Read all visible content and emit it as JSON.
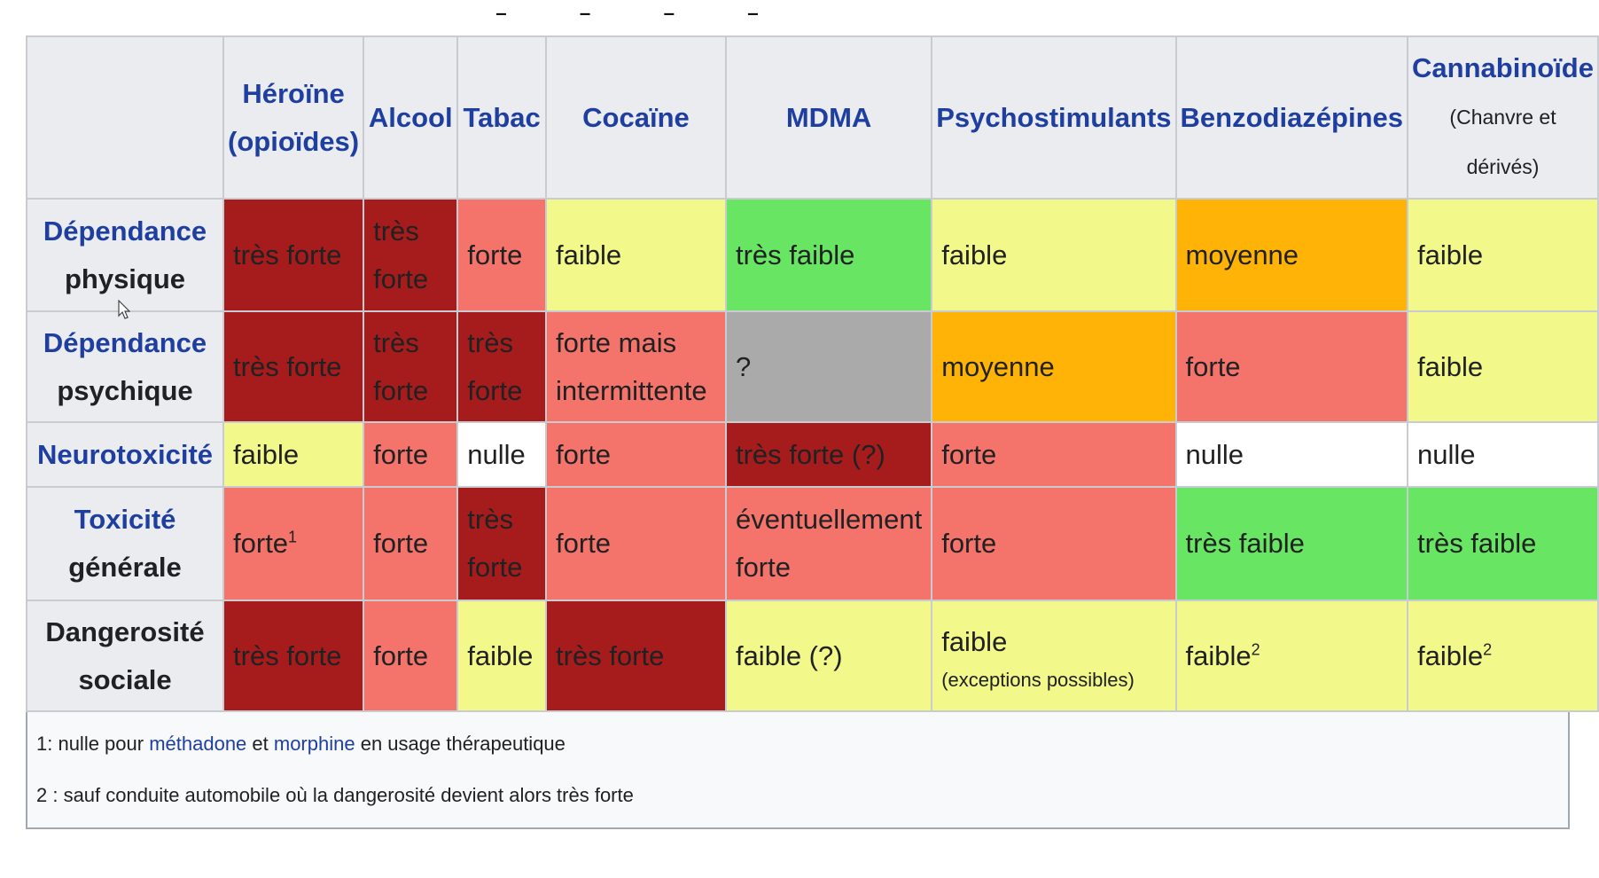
{
  "columns": [
    {
      "label": "Héroïne (opioïdes)",
      "sub": ""
    },
    {
      "label": "Alcool",
      "sub": ""
    },
    {
      "label": "Tabac",
      "sub": ""
    },
    {
      "label": "Cocaïne",
      "sub": ""
    },
    {
      "label": "MDMA",
      "sub": ""
    },
    {
      "label": "Psychostimulants",
      "sub": ""
    },
    {
      "label": "Benzodiazépines",
      "sub": ""
    },
    {
      "label": "Cannabinoïde",
      "sub": "(Chanvre et dérivés)"
    }
  ],
  "rows": [
    {
      "header_link": "Dépendance",
      "header_plain": "physique",
      "cells": [
        {
          "text": "très forte",
          "sup": "",
          "color": "dark-red"
        },
        {
          "text": "très forte",
          "sup": "",
          "color": "dark-red"
        },
        {
          "text": "forte",
          "sup": "",
          "color": "salmon"
        },
        {
          "text": "faible",
          "sup": "",
          "color": "yellow"
        },
        {
          "text": "très faible",
          "sup": "",
          "color": "green"
        },
        {
          "text": "faible",
          "sup": "",
          "color": "yellow"
        },
        {
          "text": "moyenne",
          "sup": "",
          "color": "orange"
        },
        {
          "text": "faible",
          "sup": "",
          "color": "yellow"
        }
      ]
    },
    {
      "header_link": "Dépendance",
      "header_plain": "psychique",
      "cells": [
        {
          "text": "très forte",
          "sup": "",
          "color": "dark-red"
        },
        {
          "text": "très forte",
          "sup": "",
          "color": "dark-red"
        },
        {
          "text": "très forte",
          "sup": "",
          "color": "dark-red"
        },
        {
          "text": "forte mais intermittente",
          "sup": "",
          "color": "salmon"
        },
        {
          "text": "?",
          "sup": "",
          "color": "grey"
        },
        {
          "text": "moyenne",
          "sup": "",
          "color": "orange"
        },
        {
          "text": "forte",
          "sup": "",
          "color": "salmon"
        },
        {
          "text": "faible",
          "sup": "",
          "color": "yellow"
        }
      ]
    },
    {
      "header_link": "Neurotoxicité",
      "header_plain": "",
      "cells": [
        {
          "text": "faible",
          "sup": "",
          "color": "yellow"
        },
        {
          "text": "forte",
          "sup": "",
          "color": "salmon"
        },
        {
          "text": "nulle",
          "sup": "",
          "color": "white"
        },
        {
          "text": "forte",
          "sup": "",
          "color": "salmon"
        },
        {
          "text": "très forte (?)",
          "sup": "",
          "color": "dark-red"
        },
        {
          "text": "forte",
          "sup": "",
          "color": "salmon"
        },
        {
          "text": "nulle",
          "sup": "",
          "color": "white"
        },
        {
          "text": "nulle",
          "sup": "",
          "color": "white"
        }
      ]
    },
    {
      "header_link": "Toxicité",
      "header_plain": "générale",
      "cells": [
        {
          "text": "forte",
          "sup": "1",
          "color": "salmon"
        },
        {
          "text": "forte",
          "sup": "",
          "color": "salmon"
        },
        {
          "text": "très forte",
          "sup": "",
          "color": "dark-red"
        },
        {
          "text": "forte",
          "sup": "",
          "color": "salmon"
        },
        {
          "text": "éventuellement forte",
          "sup": "",
          "color": "salmon"
        },
        {
          "text": "forte",
          "sup": "",
          "color": "salmon"
        },
        {
          "text": "très faible",
          "sup": "",
          "color": "green"
        },
        {
          "text": "très faible",
          "sup": "",
          "color": "green"
        }
      ]
    },
    {
      "header_link": "",
      "header_plain": "Dangerosité sociale",
      "cells": [
        {
          "text": "très forte",
          "sup": "",
          "color": "dark-red"
        },
        {
          "text": "forte",
          "sup": "",
          "color": "salmon"
        },
        {
          "text": "faible",
          "sup": "",
          "color": "yellow"
        },
        {
          "text": "très forte",
          "sup": "",
          "color": "dark-red"
        },
        {
          "text": "faible (?)",
          "sup": "",
          "color": "yellow"
        },
        {
          "text": "faible",
          "sup": "",
          "note": "(exceptions possibles)",
          "color": "yellow"
        },
        {
          "text": "faible",
          "sup": "2",
          "color": "yellow"
        },
        {
          "text": "faible",
          "sup": "2",
          "color": "yellow"
        }
      ]
    }
  ],
  "footnotes": {
    "note1": {
      "prefix": "1: nulle pour ",
      "link1": "méthadone",
      "mid": " et ",
      "link2": "morphine",
      "suffix": " en usage thérapeutique"
    },
    "note2": "2 : sauf conduite automobile où la dangerosité devient alors très forte"
  },
  "palette": {
    "dark-red": "#a61c1c",
    "salmon": "#f4736b",
    "yellow": "#f2f889",
    "green": "#68e562",
    "orange": "#ffb307",
    "grey": "#aaaaaa",
    "white": "#ffffff",
    "link": "#1f3fa0",
    "header-bg": "#eaecf0"
  },
  "icons": {
    "cursor": "mouse-pointer-icon"
  }
}
